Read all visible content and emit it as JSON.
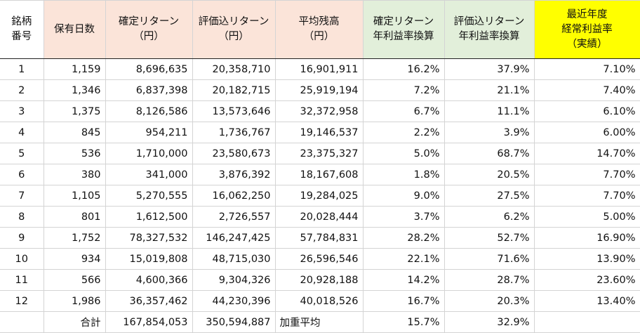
{
  "header": {
    "code": [
      "銘柄",
      "番号"
    ],
    "days": "保有日数",
    "realized": [
      "確定リターン",
      "（円）"
    ],
    "valuation": [
      "評価込リターン",
      "（円）"
    ],
    "avg_balance": [
      "平均残高",
      "（円）"
    ],
    "realized_rate": [
      "確定リターン",
      "年利益率換算"
    ],
    "valuation_rate": [
      "評価込リターン",
      "年利益率換算"
    ],
    "ordinary_rate": [
      "最近年度",
      "経常利益率",
      "（実績）"
    ]
  },
  "rows": [
    {
      "code": "1",
      "days": "1,159",
      "realized": "8,696,635",
      "valuation": "20,358,710",
      "avg": "16,901,911",
      "r_rate": "16.2%",
      "v_rate": "37.9%",
      "o_rate": "7.10%"
    },
    {
      "code": "2",
      "days": "1,346",
      "realized": "6,837,398",
      "valuation": "20,182,715",
      "avg": "25,919,194",
      "r_rate": "7.2%",
      "v_rate": "21.1%",
      "o_rate": "7.40%"
    },
    {
      "code": "3",
      "days": "1,375",
      "realized": "8,126,586",
      "valuation": "13,573,646",
      "avg": "32,372,958",
      "r_rate": "6.7%",
      "v_rate": "11.1%",
      "o_rate": "6.10%"
    },
    {
      "code": "4",
      "days": "845",
      "realized": "954,211",
      "valuation": "1,736,767",
      "avg": "19,146,537",
      "r_rate": "2.2%",
      "v_rate": "3.9%",
      "o_rate": "6.00%"
    },
    {
      "code": "5",
      "days": "536",
      "realized": "1,710,000",
      "valuation": "23,580,673",
      "avg": "23,375,327",
      "r_rate": "5.0%",
      "v_rate": "68.7%",
      "o_rate": "14.70%"
    },
    {
      "code": "6",
      "days": "380",
      "realized": "341,000",
      "valuation": "3,876,392",
      "avg": "18,167,608",
      "r_rate": "1.8%",
      "v_rate": "20.5%",
      "o_rate": "7.70%"
    },
    {
      "code": "7",
      "days": "1,105",
      "realized": "5,270,555",
      "valuation": "16,062,250",
      "avg": "19,284,025",
      "r_rate": "9.0%",
      "v_rate": "27.5%",
      "o_rate": "7.70%"
    },
    {
      "code": "8",
      "days": "801",
      "realized": "1,612,500",
      "valuation": "2,726,557",
      "avg": "20,028,444",
      "r_rate": "3.7%",
      "v_rate": "6.2%",
      "o_rate": "5.00%"
    },
    {
      "code": "9",
      "days": "1,752",
      "realized": "78,327,532",
      "valuation": "146,247,425",
      "avg": "57,784,831",
      "r_rate": "28.2%",
      "v_rate": "52.7%",
      "o_rate": "16.90%"
    },
    {
      "code": "10",
      "days": "934",
      "realized": "15,019,808",
      "valuation": "48,715,030",
      "avg": "26,596,546",
      "r_rate": "22.1%",
      "v_rate": "71.6%",
      "o_rate": "13.90%"
    },
    {
      "code": "11",
      "days": "566",
      "realized": "4,600,366",
      "valuation": "9,304,326",
      "avg": "20,928,188",
      "r_rate": "14.2%",
      "v_rate": "28.7%",
      "o_rate": "23.60%"
    },
    {
      "code": "12",
      "days": "1,986",
      "realized": "36,357,462",
      "valuation": "44,230,396",
      "avg": "40,018,526",
      "r_rate": "16.7%",
      "v_rate": "20.3%",
      "o_rate": "13.40%"
    }
  ],
  "total": {
    "label": "合計",
    "realized": "167,854,053",
    "valuation": "350,594,887",
    "avg_label": "加重平均",
    "r_rate": "15.7%",
    "v_rate": "32.9%"
  },
  "colors": {
    "header_pink": "#fbe4d9",
    "header_green": "#e2efda",
    "header_yellow": "#ffff00"
  }
}
